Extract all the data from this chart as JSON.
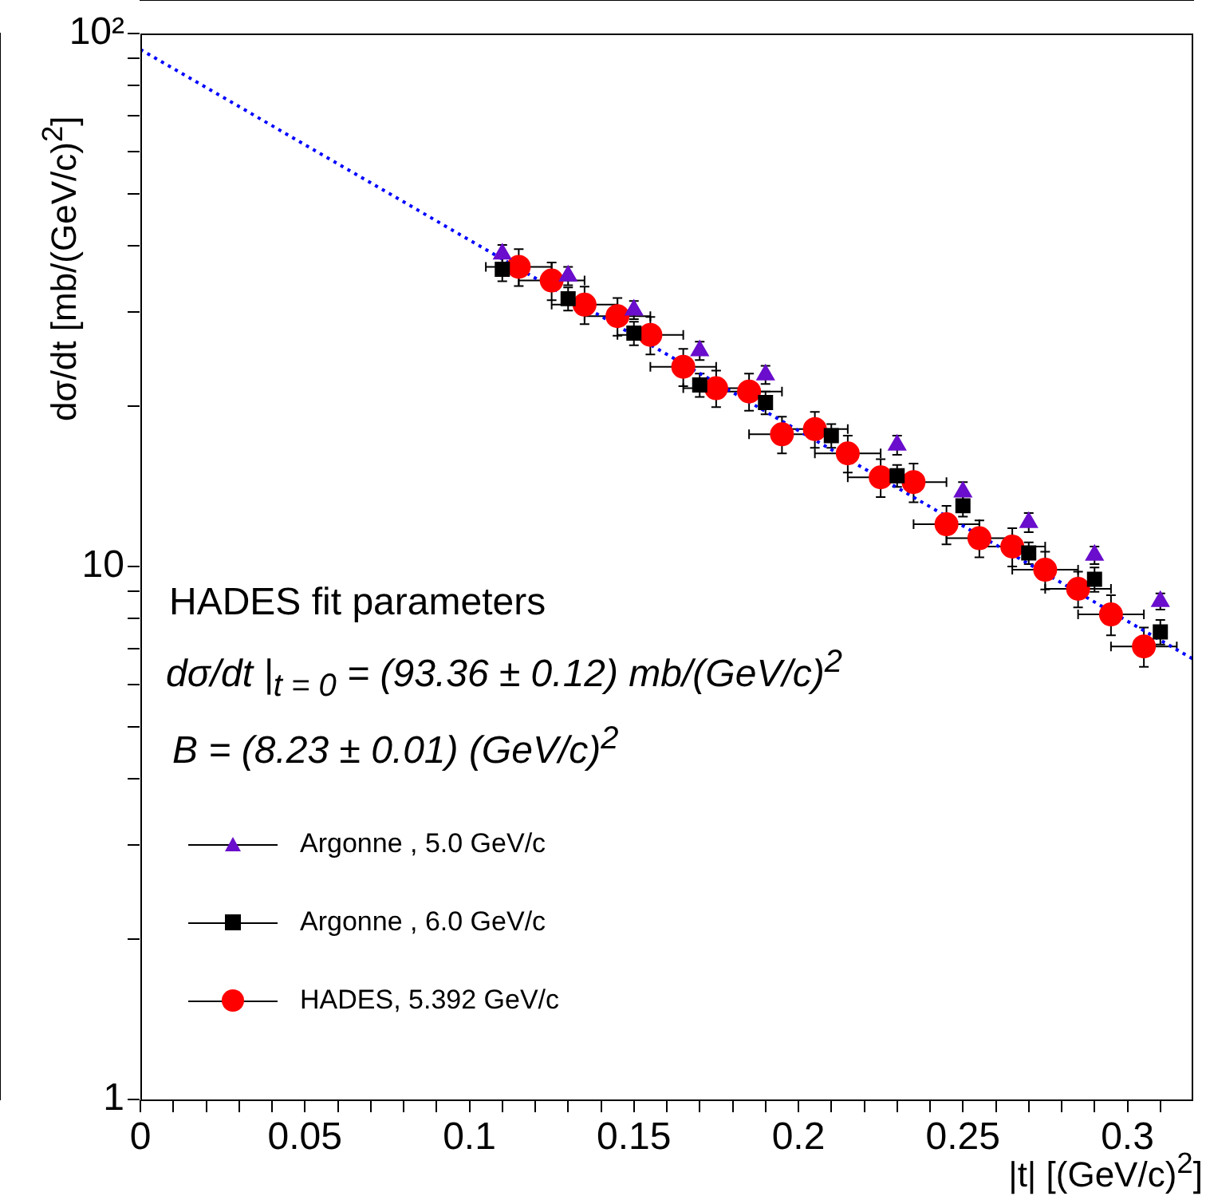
{
  "chart_data": {
    "type": "scatter",
    "xlabel": "|t| [(GeV/c)$^{2}$]",
    "ylabel": "dσ/dt  [mb/(GeV/c)$^{2}$]",
    "xlim": [
      0,
      0.32
    ],
    "xticks": [
      0,
      {
        "value": 0.01,
        "label": null
      },
      {
        "value": 0.02,
        "label": null
      },
      {
        "value": 0.03,
        "label": null
      },
      {
        "value": 0.04,
        "label": null
      },
      0.05,
      {
        "value": 0.06,
        "label": null
      },
      {
        "value": 0.07,
        "label": null
      },
      {
        "value": 0.08,
        "label": null
      },
      {
        "value": 0.09,
        "label": null
      },
      0.1,
      {
        "value": 0.11,
        "label": null
      },
      {
        "value": 0.12,
        "label": null
      },
      {
        "value": 0.13,
        "label": null
      },
      {
        "value": 0.14,
        "label": null
      },
      0.15,
      {
        "value": 0.16,
        "label": null
      },
      {
        "value": 0.17,
        "label": null
      },
      {
        "value": 0.18,
        "label": null
      },
      {
        "value": 0.19,
        "label": null
      },
      0.2,
      {
        "value": 0.21,
        "label": null
      },
      {
        "value": 0.22,
        "label": null
      },
      {
        "value": 0.23,
        "label": null
      },
      {
        "value": 0.24,
        "label": null
      },
      0.25,
      {
        "value": 0.26,
        "label": null
      },
      {
        "value": 0.27,
        "label": null
      },
      {
        "value": 0.28,
        "label": null
      },
      {
        "value": 0.29,
        "label": null
      },
      0.3,
      {
        "value": 0.31,
        "label": null
      }
    ],
    "ylim": [
      1,
      100
    ],
    "log": "y",
    "yticks": [
      1,
      {
        "value": 2,
        "label": null
      },
      {
        "value": 3,
        "label": null
      },
      {
        "value": 4,
        "label": null
      },
      {
        "value": 5,
        "label": null
      },
      {
        "value": 6,
        "label": null
      },
      {
        "value": 7,
        "label": null
      },
      {
        "value": 8,
        "label": null
      },
      {
        "value": 9,
        "label": null
      },
      10,
      {
        "value": 20,
        "label": null
      },
      {
        "value": 30,
        "label": null
      },
      {
        "value": 40,
        "label": null
      },
      {
        "value": 50,
        "label": null
      },
      {
        "value": 60,
        "label": null
      },
      {
        "value": 70,
        "label": null
      },
      {
        "value": 80,
        "label": null
      },
      {
        "value": 90,
        "label": null
      },
      {
        "value": 100,
        "label": "10²"
      }
    ],
    "grid": false,
    "legend": "bottom left",
    "annotations": [
      "HADES fit parameters",
      "dσ/dt |$_{t = 0}$ = (93.36 ± 0.12) mb/(GeV/c)$^{2}$",
      "B = (8.23 ± 0.01) (GeV/c)$^{2}$"
    ],
    "series": [
      {
        "type": "line",
        "color": "#0000ff",
        "line_style": "dotted",
        "marker": "none",
        "x": [
          0,
          0.32
        ],
        "values": [
          93.36,
          6.7
        ]
      },
      {
        "name": "Argonne , 5.0 GeV/c",
        "marker": "triangle",
        "color": "#6a0dcc",
        "x": [
          0.11,
          0.13,
          0.15,
          0.17,
          0.19,
          0.23,
          0.25,
          0.27,
          0.29,
          0.31
        ],
        "values": [
          38.6,
          35.1,
          30.3,
          25.4,
          22.9,
          16.9,
          13.8,
          12.1,
          10.5,
          8.6
        ],
        "errors": [
          1.5,
          1.4,
          1.2,
          1.0,
          0.9,
          0.7,
          0.6,
          0.5,
          0.4,
          0.3
        ]
      },
      {
        "name": "Argonne , 6.0 GeV/c",
        "marker": "square",
        "color": "#000000",
        "x": [
          0.11,
          0.13,
          0.15,
          0.17,
          0.19,
          0.21,
          0.23,
          0.25,
          0.27,
          0.29,
          0.31
        ],
        "values": [
          36.1,
          31.8,
          27.4,
          21.9,
          20.3,
          17.6,
          14.8,
          13.0,
          10.6,
          9.46,
          7.54
        ],
        "errors": [
          1.8,
          1.6,
          1.4,
          1.1,
          1.0,
          0.9,
          0.7,
          0.6,
          0.5,
          0.5,
          0.4
        ]
      },
      {
        "name": "HADES, 5.392 GeV/c",
        "marker": "circle",
        "color": "#ff0000",
        "x": [
          0.115,
          0.125,
          0.135,
          0.145,
          0.155,
          0.165,
          0.175,
          0.185,
          0.195,
          0.205,
          0.215,
          0.225,
          0.235,
          0.245,
          0.255,
          0.265,
          0.275,
          0.285,
          0.295,
          0.305
        ],
        "values": [
          36.5,
          34.4,
          31.0,
          29.5,
          27.2,
          23.7,
          21.6,
          21.3,
          17.7,
          18.1,
          16.3,
          14.7,
          14.4,
          12.0,
          11.3,
          10.9,
          9.86,
          9.08,
          8.13,
          7.08
        ],
        "errors": [
          2.9,
          2.8,
          2.5,
          2.4,
          2.2,
          1.9,
          1.7,
          1.7,
          1.4,
          1.4,
          1.3,
          1.2,
          1.2,
          1.0,
          0.9,
          0.9,
          0.8,
          0.7,
          0.7,
          0.6
        ],
        "xerrors": [
          0.01,
          0.01,
          0.01,
          0.01,
          0.01,
          0.01,
          0.01,
          0.01,
          0.01,
          0.01,
          0.01,
          0.01,
          0.01,
          0.01,
          0.01,
          0.01,
          0.01,
          0.01,
          0.01,
          0.01
        ]
      }
    ]
  }
}
